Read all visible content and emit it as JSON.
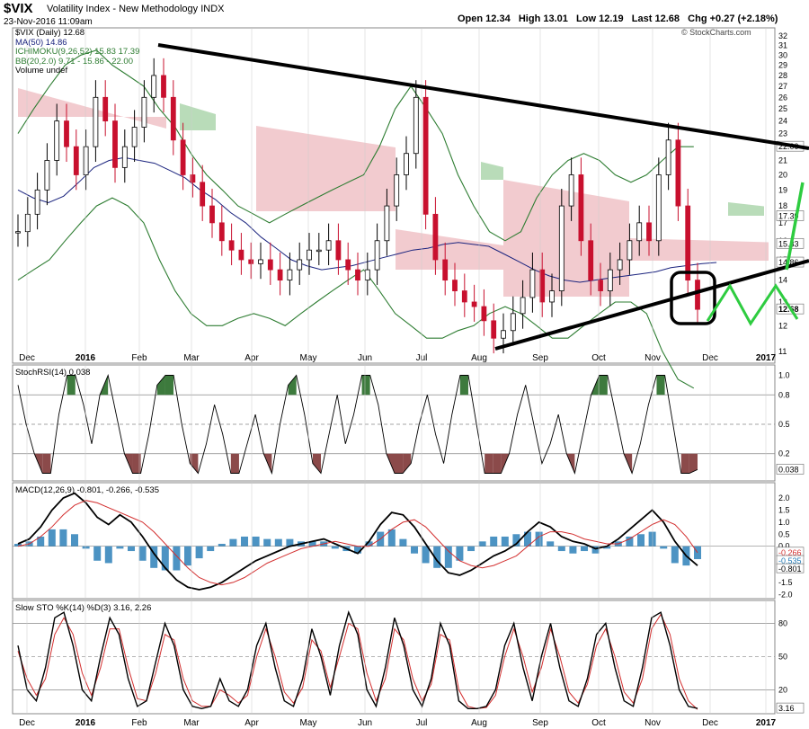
{
  "header": {
    "symbol": "$VIX",
    "name": "Volatility Index - New Methodology  INDX",
    "date_time": "23-Nov-2016 11:09am",
    "ohlc": "Open 12.34   High 13.01   Low 12.19   Last 12.68   Chg +0.27 (+2.18%)",
    "copyright": "© StockCharts.com"
  },
  "colors": {
    "up": "#000000",
    "down": "#c8102e",
    "ichimoku_cloud_bear": "#e8a0a8",
    "ichimoku_cloud_bull": "#7fbf7f",
    "bb": "#2e7d32",
    "ma": "#1a237e",
    "macd_hist": "#1f78b4",
    "signal": "#d32f2f",
    "overlay": "#2ecc40",
    "stochrsi_high": "#3d7a3d",
    "stochrsi_low": "#8b4a4a"
  },
  "chart_data": [
    {
      "type": "line",
      "panel": "price",
      "legend": [
        "$VIX (Daily) 12.68",
        "MA(50) 14.86",
        "ICHIMOKU(9,26,52) 15.83 17.39",
        "BB(20,2.0) 9.71 - 15.86 - 22.00",
        "Volume undef"
      ],
      "x_ticks": [
        "Dec",
        "2016",
        "Feb",
        "Mar",
        "Apr",
        "May",
        "Jun",
        "Jul",
        "Aug",
        "Sep",
        "Oct",
        "Nov",
        "Dec",
        "2017"
      ],
      "y_ticks": [
        11,
        12,
        13,
        14,
        15,
        16,
        17,
        18,
        19,
        20,
        21,
        22,
        23,
        24,
        25,
        26,
        27,
        28,
        29,
        30,
        31,
        32
      ],
      "y_scale": "log",
      "ylim": [
        10.6,
        32.8
      ],
      "right_labels": [
        "22.00",
        "17.39",
        "15.83",
        "14.86",
        "12.68"
      ],
      "x": [
        0,
        4,
        8,
        12,
        16,
        20,
        24,
        28,
        32,
        36,
        40,
        44,
        48,
        52,
        56,
        60,
        64,
        68,
        72,
        76,
        80,
        84,
        88,
        92,
        96,
        100,
        104,
        108,
        112,
        116,
        120,
        124,
        128,
        132,
        136,
        140,
        144,
        148,
        152,
        156,
        160,
        164,
        168,
        172,
        176,
        180,
        184,
        188,
        192,
        196,
        200,
        204,
        208,
        212,
        216,
        220,
        224,
        228,
        232,
        236,
        240,
        244,
        248,
        252,
        256,
        260,
        264,
        268,
        272,
        276,
        280
      ],
      "values": [
        16.5,
        17.5,
        19,
        21,
        24,
        22,
        20,
        22,
        26,
        24,
        20.5,
        22,
        23.5,
        26,
        28,
        26,
        22.5,
        20,
        19.5,
        18,
        17,
        16,
        15.5,
        15,
        14.8,
        15,
        14.5,
        14,
        14.5,
        15,
        15.5,
        15.5,
        16,
        15,
        14.5,
        14,
        14.5,
        16,
        18,
        20,
        21.5,
        26,
        17.5,
        15,
        14,
        13.5,
        13,
        12.8,
        12.2,
        11.5,
        11.8,
        12.5,
        13.2,
        14.5,
        13,
        13.5,
        18,
        20,
        16,
        14,
        13.5,
        14.5,
        15,
        16,
        17,
        16,
        20,
        22.5,
        18,
        14,
        12.68
      ],
      "ma50": [
        19,
        18.5,
        18.2,
        18.6,
        19.5,
        20.5,
        21,
        21.2,
        21,
        20.8,
        20.3,
        19.8,
        19,
        18.4,
        17.6,
        17,
        16.2,
        15.6,
        15,
        14.7,
        14.5,
        14.6,
        14.7,
        14.9,
        15.1,
        15.3,
        15.5,
        15.6,
        15.8,
        15.9,
        15.8,
        15.7,
        15.3,
        14.9,
        14.5,
        14.2,
        14.0,
        13.9,
        14.0,
        14.1,
        14.2,
        14.3,
        14.4,
        14.6,
        14.7,
        14.8,
        14.86
      ],
      "bb_upper": [
        23,
        25,
        27,
        29,
        30,
        30.5,
        29,
        28,
        27,
        25,
        23.5,
        21.5,
        20,
        19,
        18,
        17.5,
        17,
        17.5,
        18,
        18.5,
        19,
        19.5,
        20,
        22,
        25,
        27,
        25,
        23,
        20,
        18,
        16.5,
        16,
        16.5,
        18.5,
        20,
        21,
        21.5,
        21,
        20,
        19.5,
        20,
        21,
        22,
        22
      ],
      "bb_lower": [
        14,
        14.5,
        15,
        16,
        17,
        18,
        18.5,
        18,
        17,
        15,
        13.5,
        12.5,
        12,
        12,
        12.3,
        12.5,
        12.3,
        12,
        12.5,
        13,
        13.5,
        14,
        14.5,
        13.5,
        12.5,
        12,
        11.5,
        11.5,
        11.8,
        12,
        12.5,
        12.8,
        12.5,
        12,
        11.5,
        11.5,
        12,
        12.5,
        13,
        13,
        12.5,
        11,
        10,
        9.71
      ]
    },
    {
      "type": "line",
      "panel": "stochrsi",
      "legend": [
        "StochRSI(14) 0.038"
      ],
      "y_ticks": [
        0.2,
        0.5,
        0.8,
        1.0
      ],
      "ylim": [
        -0.05,
        1.05
      ],
      "right_label": "0.038",
      "values": [
        0.9,
        0.5,
        0.2,
        0,
        0,
        0.6,
        1,
        1,
        0.7,
        0.3,
        0.8,
        1,
        0.6,
        0.2,
        0,
        0,
        0.4,
        0.9,
        1,
        1,
        0.5,
        0.1,
        0,
        0.3,
        0.7,
        0.4,
        0,
        0,
        0.3,
        0.6,
        0.2,
        0,
        0.5,
        0.9,
        1,
        0.6,
        0.1,
        0,
        0.4,
        0.8,
        0.3,
        0.6,
        1,
        1,
        0.7,
        0.2,
        0,
        0,
        0.1,
        0.5,
        0.8,
        0.4,
        0.1,
        0.6,
        1,
        1,
        0.5,
        0,
        0,
        0,
        0.2,
        0.6,
        0.9,
        0.5,
        0.1,
        0.3,
        0.6,
        0.2,
        0,
        0.4,
        0.8,
        1,
        1,
        0.6,
        0.2,
        0,
        0.3,
        0.7,
        1,
        1,
        0.5,
        0,
        0,
        0.038
      ]
    },
    {
      "type": "line",
      "panel": "macd",
      "legend": [
        "MACD(12,26,9) -0.801, -0.266, -0.535"
      ],
      "y_ticks": [
        -2.0,
        -1.5,
        -1.0,
        -0.5,
        0.0,
        0.5,
        1.0,
        1.5,
        2.0
      ],
      "ylim": [
        -2.1,
        2.3
      ],
      "right_labels": [
        "-0.266",
        "-0.535",
        "-0.801"
      ],
      "macd": [
        0.1,
        0.3,
        0.8,
        1.5,
        2.0,
        2.2,
        1.8,
        1.2,
        0.9,
        1.3,
        1.0,
        0.4,
        -0.3,
        -0.9,
        -1.4,
        -1.7,
        -1.8,
        -1.7,
        -1.5,
        -1.2,
        -0.9,
        -0.6,
        -0.4,
        -0.2,
        0,
        0.1,
        0.2,
        0.3,
        0.1,
        -0.1,
        -0.3,
        0.2,
        0.9,
        1.4,
        1.3,
        0.8,
        0.1,
        -0.6,
        -1.1,
        -1.2,
        -1.0,
        -0.7,
        -0.4,
        -0.2,
        0.1,
        0.6,
        1.0,
        0.8,
        0.4,
        0.2,
        0.1,
        -0.1,
        0,
        0.3,
        0.7,
        1.1,
        1.5,
        1.0,
        0.2,
        -0.4,
        -0.801
      ],
      "signal": [
        0,
        0.1,
        0.4,
        0.8,
        1.3,
        1.7,
        1.9,
        1.8,
        1.6,
        1.4,
        1.2,
        1.0,
        0.6,
        0.1,
        -0.4,
        -0.9,
        -1.3,
        -1.5,
        -1.6,
        -1.5,
        -1.3,
        -1.0,
        -0.7,
        -0.5,
        -0.3,
        -0.1,
        0,
        0.1,
        0.2,
        0.1,
        0,
        0,
        0.3,
        0.7,
        1.0,
        1.1,
        0.8,
        0.3,
        -0.2,
        -0.6,
        -0.8,
        -0.9,
        -0.8,
        -0.6,
        -0.4,
        0,
        0.4,
        0.6,
        0.6,
        0.5,
        0.3,
        0.2,
        0.1,
        0.1,
        0.3,
        0.6,
        0.9,
        1.1,
        0.9,
        0.4,
        -0.266
      ]
    },
    {
      "type": "line",
      "panel": "slow_sto",
      "legend": [
        "Slow STO %K(14) %D(3) 3.16, 2.26"
      ],
      "y_ticks": [
        20,
        50,
        80
      ],
      "ylim": [
        0,
        95
      ],
      "right_label": "3.16",
      "k": [
        60,
        20,
        10,
        40,
        85,
        90,
        60,
        20,
        10,
        50,
        85,
        70,
        30,
        5,
        10,
        45,
        80,
        60,
        20,
        5,
        3,
        5,
        30,
        10,
        5,
        20,
        60,
        80,
        40,
        10,
        5,
        30,
        75,
        50,
        15,
        60,
        90,
        70,
        20,
        5,
        40,
        85,
        60,
        20,
        5,
        30,
        80,
        60,
        10,
        3,
        3,
        5,
        20,
        60,
        80,
        40,
        10,
        50,
        80,
        40,
        10,
        5,
        30,
        70,
        80,
        40,
        10,
        5,
        40,
        85,
        90,
        60,
        20,
        5,
        3.16
      ],
      "d": [
        55,
        30,
        15,
        30,
        70,
        85,
        70,
        35,
        15,
        40,
        75,
        75,
        40,
        12,
        10,
        35,
        70,
        65,
        30,
        10,
        5,
        5,
        20,
        15,
        8,
        15,
        50,
        75,
        50,
        18,
        8,
        22,
        65,
        55,
        22,
        50,
        80,
        75,
        35,
        10,
        30,
        75,
        65,
        30,
        10,
        25,
        70,
        65,
        20,
        5,
        3,
        4,
        15,
        50,
        75,
        50,
        18,
        40,
        75,
        50,
        18,
        8,
        25,
        60,
        75,
        50,
        18,
        8,
        30,
        75,
        88,
        70,
        30,
        10,
        2.26
      ]
    }
  ],
  "x_axis_ticks": [
    "Dec",
    "2016",
    "Feb",
    "Mar",
    "Apr",
    "May",
    "Jun",
    "Jul",
    "Aug",
    "Sep",
    "Oct",
    "Nov",
    "Dec",
    "2017"
  ]
}
